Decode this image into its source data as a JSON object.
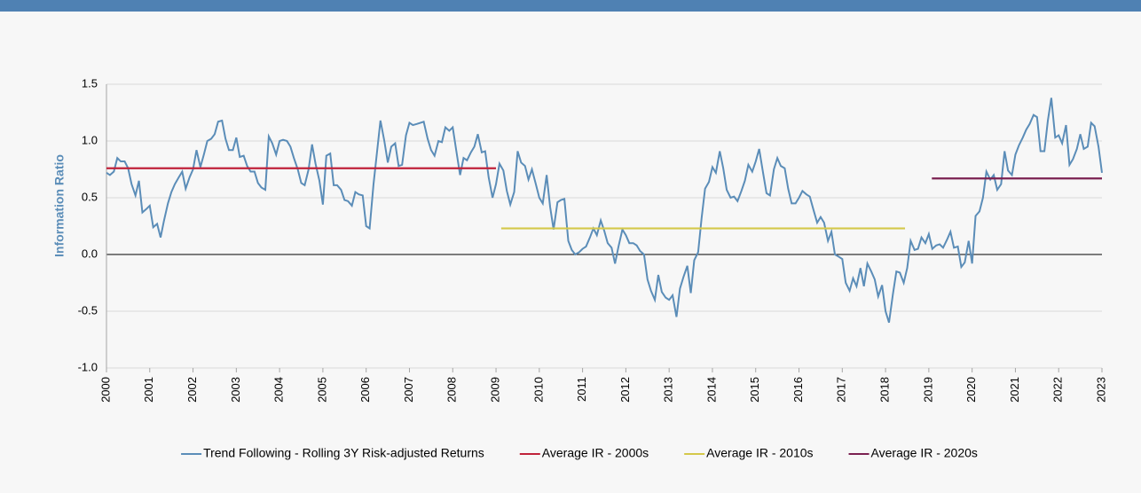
{
  "chart_data": {
    "type": "line",
    "y_label": "Information Ratio",
    "xlim": [
      2000,
      2023
    ],
    "xticks": [
      2000,
      2001,
      2002,
      2003,
      2004,
      2005,
      2006,
      2007,
      2008,
      2009,
      2010,
      2011,
      2012,
      2013,
      2014,
      2015,
      2016,
      2017,
      2018,
      2019,
      2020,
      2021,
      2022,
      2023
    ],
    "ylim": [
      -1,
      1.5
    ],
    "yticks": [
      {
        "value": -1,
        "label": "-1.0"
      },
      -0.5,
      {
        "value": 0,
        "label": "0.0"
      },
      0.5,
      {
        "value": 1,
        "label": "1.0"
      },
      1.5
    ],
    "grid": true,
    "legend": "bottom",
    "series": [
      {
        "name": "Trend Following - Rolling 3Y Risk-adjusted Returns",
        "color": "#5b8db8",
        "x": [
          2000,
          2000.08,
          2000.17,
          2000.25,
          2000.33,
          2000.42,
          2000.5,
          2000.58,
          2000.67,
          2000.75,
          2000.83,
          2000.92,
          2001,
          2001.08,
          2001.17,
          2001.25,
          2001.33,
          2001.42,
          2001.5,
          2001.58,
          2001.67,
          2001.75,
          2001.83,
          2001.92,
          2002,
          2002.08,
          2002.17,
          2002.25,
          2002.33,
          2002.42,
          2002.5,
          2002.58,
          2002.67,
          2002.75,
          2002.83,
          2002.92,
          2003,
          2003.08,
          2003.17,
          2003.25,
          2003.33,
          2003.42,
          2003.5,
          2003.58,
          2003.67,
          2003.75,
          2003.83,
          2003.92,
          2004,
          2004.08,
          2004.17,
          2004.25,
          2004.33,
          2004.42,
          2004.5,
          2004.58,
          2004.67,
          2004.75,
          2004.83,
          2004.92,
          2005,
          2005.08,
          2005.17,
          2005.25,
          2005.33,
          2005.42,
          2005.5,
          2005.58,
          2005.67,
          2005.75,
          2005.83,
          2005.92,
          2006,
          2006.08,
          2006.17,
          2006.25,
          2006.33,
          2006.42,
          2006.5,
          2006.58,
          2006.67,
          2006.75,
          2006.83,
          2006.92,
          2007,
          2007.08,
          2007.17,
          2007.25,
          2007.33,
          2007.42,
          2007.5,
          2007.58,
          2007.67,
          2007.75,
          2007.83,
          2007.92,
          2008,
          2008.08,
          2008.17,
          2008.25,
          2008.33,
          2008.42,
          2008.5,
          2008.58,
          2008.67,
          2008.75,
          2008.83,
          2008.92,
          2009,
          2009.08,
          2009.17,
          2009.25,
          2009.33,
          2009.42,
          2009.5,
          2009.58,
          2009.67,
          2009.75,
          2009.83,
          2009.92,
          2010,
          2010.08,
          2010.17,
          2010.25,
          2010.33,
          2010.42,
          2010.5,
          2010.58,
          2010.67,
          2010.75,
          2010.83,
          2010.92,
          2011,
          2011.08,
          2011.17,
          2011.25,
          2011.33,
          2011.42,
          2011.5,
          2011.58,
          2011.67,
          2011.75,
          2011.83,
          2011.92,
          2012,
          2012.08,
          2012.17,
          2012.25,
          2012.33,
          2012.42,
          2012.5,
          2012.58,
          2012.67,
          2012.75,
          2012.83,
          2012.92,
          2013,
          2013.08,
          2013.17,
          2013.25,
          2013.33,
          2013.42,
          2013.5,
          2013.58,
          2013.67,
          2013.75,
          2013.83,
          2013.92,
          2014,
          2014.08,
          2014.17,
          2014.25,
          2014.33,
          2014.42,
          2014.5,
          2014.58,
          2014.67,
          2014.75,
          2014.83,
          2014.92,
          2015,
          2015.08,
          2015.17,
          2015.25,
          2015.33,
          2015.42,
          2015.5,
          2015.58,
          2015.67,
          2015.75,
          2015.83,
          2015.92,
          2016,
          2016.08,
          2016.17,
          2016.25,
          2016.33,
          2016.42,
          2016.5,
          2016.58,
          2016.67,
          2016.75,
          2016.83,
          2016.92,
          2017,
          2017.08,
          2017.17,
          2017.25,
          2017.33,
          2017.42,
          2017.5,
          2017.58,
          2017.67,
          2017.75,
          2017.83,
          2017.92,
          2018,
          2018.08,
          2018.17,
          2018.25,
          2018.33,
          2018.42,
          2018.5,
          2018.58,
          2018.67,
          2018.75,
          2018.83,
          2018.92,
          2019,
          2019.08,
          2019.17,
          2019.25,
          2019.33,
          2019.42,
          2019.5,
          2019.58,
          2019.67,
          2019.75,
          2019.83,
          2019.92,
          2020,
          2020.08,
          2020.17,
          2020.25,
          2020.33,
          2020.42,
          2020.5,
          2020.58,
          2020.67,
          2020.75,
          2020.83,
          2020.92,
          2021,
          2021.08,
          2021.17,
          2021.25,
          2021.33,
          2021.42,
          2021.5,
          2021.58,
          2021.67,
          2021.75,
          2021.83,
          2021.92,
          2022,
          2022.08,
          2022.17,
          2022.25,
          2022.33,
          2022.42,
          2022.5,
          2022.58,
          2022.67,
          2022.75,
          2022.83,
          2022.92,
          2023
        ],
        "values": [
          0.72,
          0.7,
          0.73,
          0.85,
          0.82,
          0.82,
          0.76,
          0.62,
          0.52,
          0.65,
          0.37,
          0.4,
          0.43,
          0.24,
          0.27,
          0.15,
          0.3,
          0.45,
          0.55,
          0.62,
          0.68,
          0.73,
          0.58,
          0.68,
          0.75,
          0.92,
          0.77,
          0.88,
          1.0,
          1.02,
          1.06,
          1.17,
          1.18,
          1.02,
          0.92,
          0.92,
          1.03,
          0.86,
          0.87,
          0.78,
          0.73,
          0.73,
          0.63,
          0.59,
          0.57,
          1.04,
          0.98,
          0.88,
          1.0,
          1.01,
          1.0,
          0.95,
          0.85,
          0.75,
          0.63,
          0.61,
          0.75,
          0.97,
          0.8,
          0.65,
          0.44,
          0.87,
          0.89,
          0.61,
          0.61,
          0.57,
          0.48,
          0.47,
          0.43,
          0.55,
          0.53,
          0.52,
          0.25,
          0.23,
          0.62,
          0.9,
          1.18,
          1.0,
          0.81,
          0.95,
          0.98,
          0.78,
          0.79,
          1.05,
          1.16,
          1.14,
          1.15,
          1.16,
          1.17,
          1.02,
          0.92,
          0.87,
          1.0,
          0.99,
          1.12,
          1.09,
          1.12,
          0.92,
          0.7,
          0.85,
          0.83,
          0.9,
          0.95,
          1.06,
          0.9,
          0.91,
          0.68,
          0.5,
          0.62,
          0.8,
          0.74,
          0.56,
          0.44,
          0.55,
          0.91,
          0.81,
          0.78,
          0.66,
          0.75,
          0.62,
          0.5,
          0.45,
          0.7,
          0.42,
          0.22,
          0.46,
          0.48,
          0.49,
          0.12,
          0.04,
          0.0,
          0.02,
          0.05,
          0.07,
          0.15,
          0.23,
          0.17,
          0.3,
          0.21,
          0.1,
          0.06,
          -0.08,
          0.07,
          0.22,
          0.17,
          0.1,
          0.1,
          0.08,
          0.03,
          0.0,
          -0.22,
          -0.32,
          -0.4,
          -0.18,
          -0.33,
          -0.38,
          -0.4,
          -0.36,
          -0.55,
          -0.3,
          -0.2,
          -0.1,
          -0.34,
          -0.05,
          0.02,
          0.32,
          0.58,
          0.64,
          0.77,
          0.72,
          0.91,
          0.76,
          0.57,
          0.5,
          0.51,
          0.47,
          0.56,
          0.65,
          0.79,
          0.73,
          0.82,
          0.93,
          0.72,
          0.54,
          0.52,
          0.75,
          0.85,
          0.78,
          0.76,
          0.58,
          0.45,
          0.45,
          0.5,
          0.56,
          0.53,
          0.51,
          0.4,
          0.28,
          0.33,
          0.28,
          0.12,
          0.2,
          0.0,
          -0.02,
          -0.04,
          -0.25,
          -0.32,
          -0.21,
          -0.28,
          -0.12,
          -0.28,
          -0.08,
          -0.15,
          -0.22,
          -0.37,
          -0.27,
          -0.5,
          -0.6,
          -0.35,
          -0.15,
          -0.16,
          -0.25,
          -0.12,
          0.12,
          0.04,
          0.05,
          0.15,
          0.1,
          0.18,
          0.05,
          0.08,
          0.09,
          0.06,
          0.13,
          0.2,
          0.06,
          0.07,
          -0.11,
          -0.07,
          0.12,
          -0.08,
          0.34,
          0.38,
          0.5,
          0.73,
          0.66,
          0.7,
          0.57,
          0.62,
          0.91,
          0.74,
          0.7,
          0.88,
          0.96,
          1.03,
          1.1,
          1.15,
          1.23,
          1.21,
          0.91,
          0.91,
          1.18,
          1.38,
          1.03,
          1.05,
          0.98,
          1.14,
          0.79,
          0.84,
          0.93,
          1.06,
          0.93,
          0.95,
          1.16,
          1.13,
          0.95,
          0.72
        ]
      },
      {
        "name": "Average IR - 2000s",
        "color": "#c0223a",
        "x": [
          2000,
          2009
        ],
        "values": [
          0.76,
          0.76
        ]
      },
      {
        "name": "Average IR - 2010s",
        "color": "#d4c84a",
        "x": [
          2009.12,
          2018.45
        ],
        "values": [
          0.23,
          0.23
        ]
      },
      {
        "name": "Average IR - 2020s",
        "color": "#7b2151",
        "x": [
          2019.07,
          2023
        ],
        "values": [
          0.67,
          0.67
        ]
      }
    ]
  }
}
